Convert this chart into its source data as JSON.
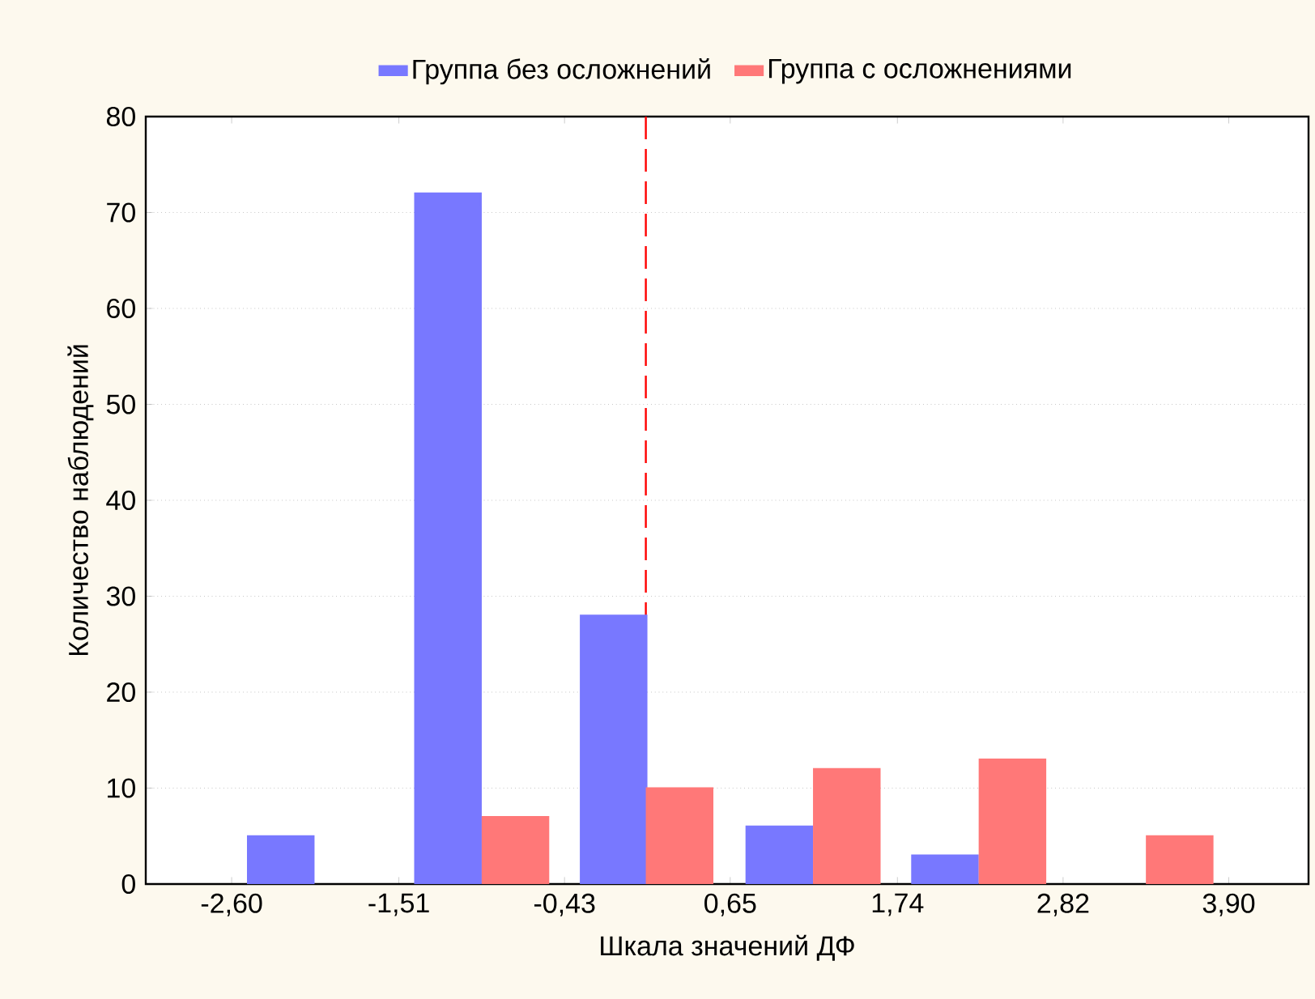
{
  "chart_data": {
    "type": "bar",
    "xlabel": "Шкала значений ДФ",
    "ylabel": "Количество наблюдений",
    "series": [
      {
        "name": "Группа без осложнений",
        "color": "#7878ff",
        "x": [
          -2.28,
          -1.19,
          -0.11,
          0.97,
          2.05
        ],
        "values": [
          5,
          72,
          28,
          6,
          3
        ]
      },
      {
        "name": "Группа с осложнениями",
        "color": "#ff7878",
        "x": [
          -0.75,
          0.32,
          1.41,
          2.49,
          3.58
        ],
        "values": [
          7,
          10,
          12,
          13,
          5
        ]
      }
    ],
    "xlim": [
      -3.16,
      4.42
    ],
    "ylim": [
      0,
      80
    ],
    "xticks": [
      {
        "value": -2.6,
        "label": "-2,60"
      },
      {
        "value": -1.51,
        "label": "-1,51"
      },
      {
        "value": -0.43,
        "label": "-0,43"
      },
      {
        "value": 0.65,
        "label": "0,65"
      },
      {
        "value": 1.74,
        "label": "1,74"
      },
      {
        "value": 2.82,
        "label": "2,82"
      },
      {
        "value": 3.9,
        "label": "3,90"
      }
    ],
    "yticks": [
      0,
      10,
      20,
      30,
      40,
      50,
      60,
      70,
      80
    ],
    "ref_lines": [
      {
        "axis": "x",
        "value": 0.1,
        "color": "#ff0000",
        "line_style": "dashed"
      }
    ],
    "grid": "y",
    "legend": "top"
  }
}
